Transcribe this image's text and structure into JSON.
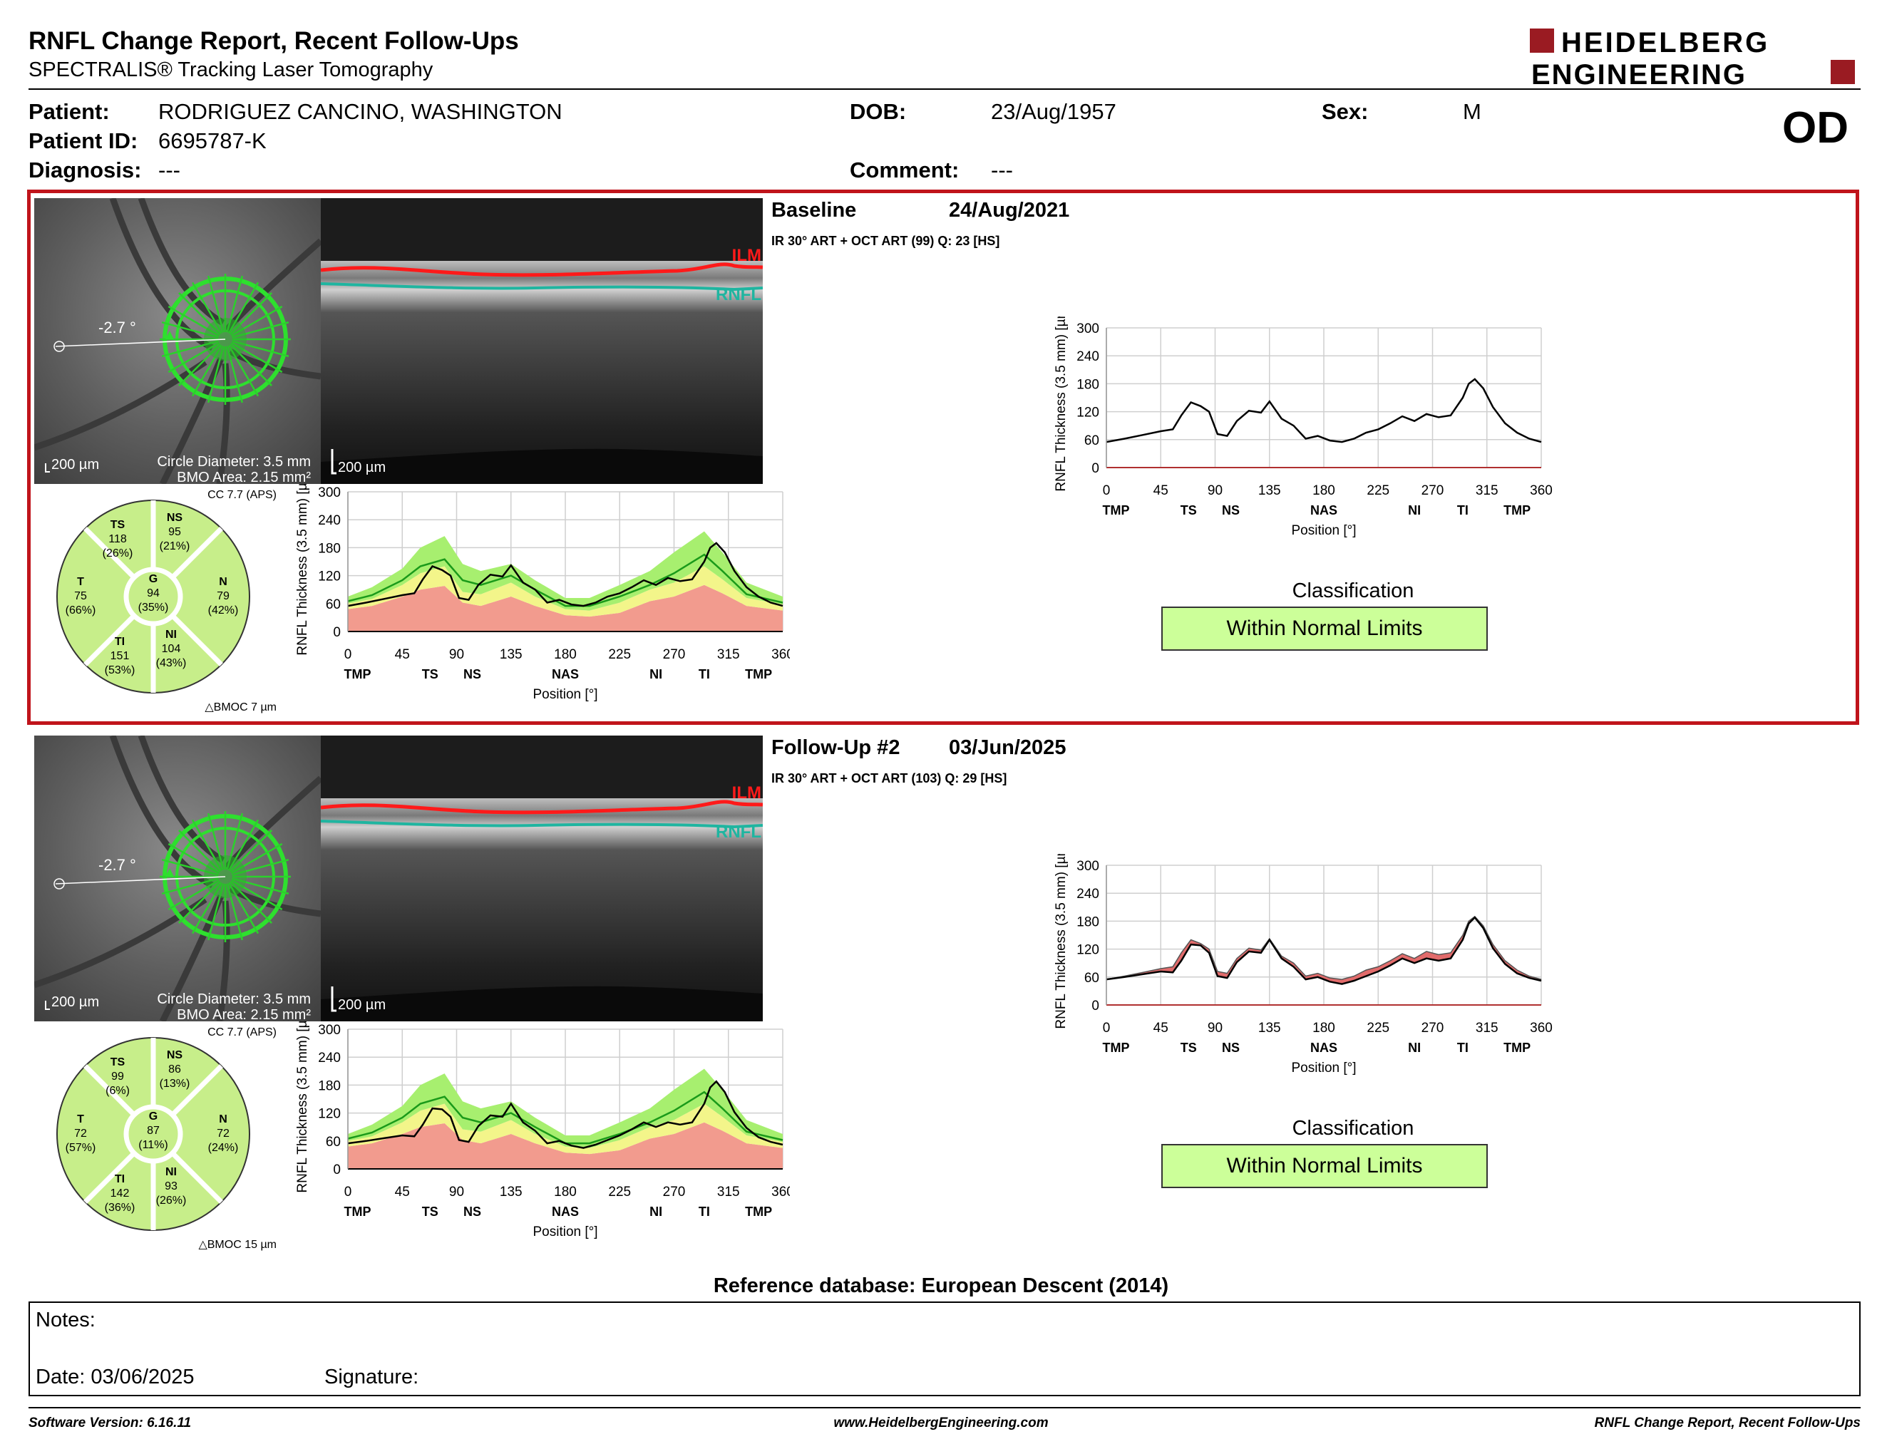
{
  "header": {
    "title": "RNFL Change Report, Recent Follow-Ups",
    "subtitle": "SPECTRALIS® Tracking Laser Tomography",
    "logo_line1": "HEIDELBERG",
    "logo_line2": "ENGINEERING"
  },
  "patient": {
    "patient_label": "Patient:",
    "patient_value": "RODRIGUEZ CANCINO, WASHINGTON",
    "id_label": "Patient ID:",
    "id_value": "6695787-K",
    "diagnosis_label": "Diagnosis:",
    "diagnosis_value": "---",
    "dob_label": "DOB:",
    "dob_value": "23/Aug/1957",
    "comment_label": "Comment:",
    "comment_value": "---",
    "sex_label": "Sex:",
    "sex_value": "M",
    "eye": "OD"
  },
  "exams": [
    {
      "title": "Baseline",
      "date": "24/Aug/2021",
      "info": "IR 30° ART + OCT ART (99) Q: 23 [HS]",
      "angle": "-2.7 °",
      "fundus_scale": "200 µm",
      "circle_diameter": "Circle Diameter: 3.5 mm",
      "bmo_area": "BMO Area: 2.15 mm²",
      "bscan_scale": "200 µm",
      "ilm": "ILM",
      "rnfl": "RNFL",
      "cc": "CC 7.7 (APS)",
      "bmoc": "BMOC 7 µm",
      "sectors": {
        "TS": {
          "label": "TS",
          "value": "118",
          "pct": "(26%)"
        },
        "NS": {
          "label": "NS",
          "value": "95",
          "pct": "(21%)"
        },
        "T": {
          "label": "T",
          "value": "75",
          "pct": "(66%)"
        },
        "G": {
          "label": "G",
          "value": "94",
          "pct": "(35%)"
        },
        "N": {
          "label": "N",
          "value": "79",
          "pct": "(42%)"
        },
        "TI": {
          "label": "TI",
          "value": "151",
          "pct": "(53%)"
        },
        "NI": {
          "label": "NI",
          "value": "104",
          "pct": "(43%)"
        }
      },
      "classification_label": "Classification",
      "classification": "Within Normal Limits"
    },
    {
      "title": "Follow-Up #2",
      "date": "03/Jun/2025",
      "info": "IR 30° ART + OCT ART (103) Q: 29 [HS]",
      "angle": "-2.7 °",
      "fundus_scale": "200 µm",
      "circle_diameter": "Circle Diameter: 3.5 mm",
      "bmo_area": "BMO Area: 2.15 mm²",
      "bscan_scale": "200 µm",
      "ilm": "ILM",
      "rnfl": "RNFL",
      "cc": "CC 7.7 (APS)",
      "bmoc": "BMOC 15 µm",
      "sectors": {
        "TS": {
          "label": "TS",
          "value": "99",
          "pct": "(6%)"
        },
        "NS": {
          "label": "NS",
          "value": "86",
          "pct": "(13%)"
        },
        "T": {
          "label": "T",
          "value": "72",
          "pct": "(57%)"
        },
        "G": {
          "label": "G",
          "value": "87",
          "pct": "(11%)"
        },
        "N": {
          "label": "N",
          "value": "72",
          "pct": "(24%)"
        },
        "TI": {
          "label": "TI",
          "value": "142",
          "pct": "(36%)"
        },
        "NI": {
          "label": "NI",
          "value": "93",
          "pct": "(26%)"
        }
      },
      "classification_label": "Classification",
      "classification": "Within Normal Limits"
    }
  ],
  "chart_axes": {
    "ylabel": "RNFL Thickness (3.5 mm) [µm]",
    "xlabel": "Position [°]",
    "xticks": [
      "0",
      "45",
      "90",
      "135",
      "180",
      "225",
      "270",
      "315",
      "360"
    ],
    "yticks": [
      "0",
      "60",
      "120",
      "180",
      "240",
      "300"
    ],
    "regions": [
      "TMP",
      "TS",
      "NS",
      "NAS",
      "NI",
      "TI",
      "TMP"
    ],
    "region_positions": [
      8,
      68,
      103,
      180,
      255,
      295,
      340
    ]
  },
  "chart_data": [
    {
      "type": "line",
      "title": "",
      "xlabel": "Position [°]",
      "ylabel": "RNFL Thickness (3.5 mm) [µm]",
      "xlim": [
        0,
        360
      ],
      "ylim": [
        0,
        300
      ],
      "x": [
        0,
        15,
        30,
        45,
        55,
        62,
        70,
        78,
        85,
        92,
        100,
        108,
        118,
        128,
        135,
        145,
        155,
        165,
        175,
        185,
        195,
        205,
        215,
        225,
        235,
        245,
        255,
        265,
        275,
        285,
        295,
        300,
        305,
        312,
        320,
        330,
        340,
        350,
        360
      ],
      "series": [
        {
          "values": [
            55,
            62,
            70,
            78,
            82,
            112,
            140,
            132,
            120,
            72,
            68,
            100,
            122,
            118,
            142,
            105,
            90,
            62,
            68,
            58,
            55,
            62,
            75,
            82,
            95,
            110,
            100,
            115,
            108,
            112,
            150,
            180,
            190,
            170,
            130,
            95,
            75,
            62,
            55
          ]
        }
      ]
    },
    {
      "type": "line",
      "title": "",
      "xlabel": "Position [°]",
      "ylabel": "RNFL Thickness (3.5 mm) [µm]",
      "xlim": [
        0,
        360
      ],
      "ylim": [
        0,
        300
      ],
      "x": [
        0,
        15,
        30,
        45,
        55,
        62,
        70,
        78,
        85,
        92,
        100,
        108,
        118,
        128,
        135,
        145,
        155,
        165,
        175,
        185,
        195,
        205,
        215,
        225,
        235,
        245,
        255,
        265,
        275,
        285,
        295,
        300,
        305,
        312,
        320,
        330,
        340,
        350,
        360
      ],
      "series": [
        {
          "values": [
            55,
            60,
            66,
            72,
            70,
            95,
            130,
            128,
            112,
            62,
            58,
            92,
            115,
            112,
            140,
            100,
            82,
            55,
            60,
            50,
            45,
            52,
            62,
            72,
            85,
            100,
            90,
            100,
            95,
            100,
            140,
            175,
            188,
            165,
            122,
            88,
            68,
            58,
            52
          ]
        },
        {
          "values": [
            55,
            62,
            70,
            78,
            82,
            112,
            140,
            132,
            120,
            72,
            68,
            100,
            122,
            118,
            142,
            105,
            90,
            62,
            68,
            58,
            55,
            62,
            75,
            82,
            95,
            110,
            100,
            115,
            108,
            112,
            150,
            180,
            190,
            170,
            130,
            95,
            75,
            62,
            55
          ]
        }
      ]
    },
    {
      "type": "area",
      "title": "",
      "xlabel": "Position [°]",
      "ylabel": "RNFL Thickness (3.5 mm) [µm]",
      "xlim": [
        0,
        360
      ],
      "ylim": [
        0,
        300
      ],
      "x": [
        0,
        20,
        45,
        60,
        80,
        95,
        110,
        135,
        155,
        180,
        200,
        225,
        250,
        270,
        295,
        310,
        330,
        360
      ],
      "series": [
        {
          "values": [
            48,
            55,
            75,
            90,
            98,
            62,
            55,
            75,
            55,
            35,
            32,
            40,
            65,
            75,
            100,
            82,
            55,
            45
          ]
        },
        {
          "values": [
            60,
            70,
            100,
            125,
            140,
            85,
            80,
            105,
            75,
            48,
            45,
            62,
            90,
            105,
            140,
            112,
            72,
            58
          ]
        },
        {
          "values": [
            65,
            78,
            110,
            140,
            155,
            110,
            100,
            120,
            90,
            55,
            55,
            75,
            100,
            125,
            165,
            130,
            80,
            62
          ]
        },
        {
          "values": [
            72,
            88,
            125,
            165,
            190,
            130,
            120,
            135,
            100,
            65,
            65,
            90,
            120,
            155,
            200,
            155,
            95,
            70
          ]
        },
        {
          "values": [
            75,
            95,
            135,
            180,
            205,
            145,
            130,
            145,
            110,
            72,
            72,
            100,
            130,
            170,
            215,
            170,
            105,
            75
          ]
        }
      ]
    }
  ],
  "reference_db": "Reference database: European Descent (2014)",
  "notes": {
    "notes_label": "Notes:",
    "date_label": "Date: 03/06/2025",
    "signature_label": "Signature:"
  },
  "footer": {
    "software": "Software Version: 6.16.11",
    "url": "www.HeidelbergEngineering.com",
    "report": "RNFL Change Report, Recent Follow-Ups"
  },
  "colors": {
    "accent_red": "#c0141b",
    "normal_green": "#ccff99",
    "sector_green": "#c7ee8a",
    "band_green": "#a7ef6f",
    "band_yellow": "#f3f58a",
    "band_red": "#f29b8e",
    "ilm_red": "#ff1a1a",
    "rnfl_teal": "#1fb5a0"
  }
}
